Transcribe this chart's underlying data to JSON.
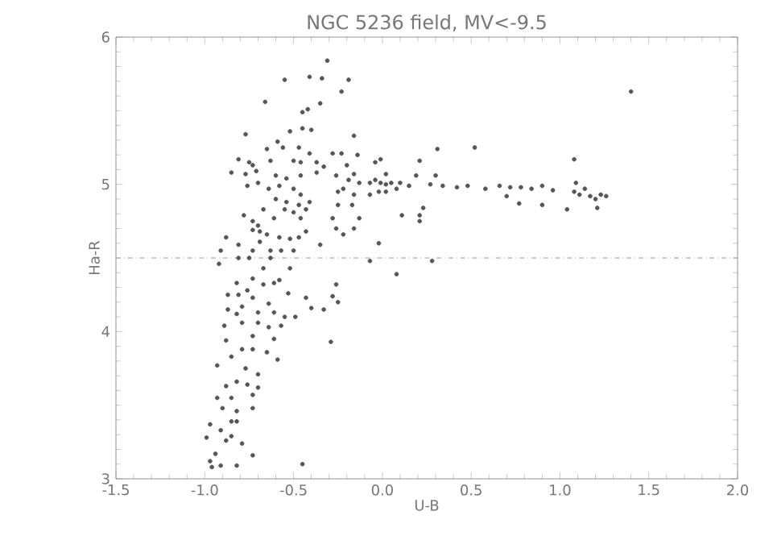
{
  "chart_data": {
    "type": "scatter",
    "title": "NGC 5236 field, MV<-9.5",
    "xlabel": "U-B",
    "ylabel": "Ha-R",
    "xlim": [
      -1.5,
      2.0
    ],
    "ylim": [
      3,
      6
    ],
    "xticks": [
      -1.5,
      {
        "value": -1.0,
        "label": "-1.0"
      },
      -0.5,
      {
        "value": 0.0,
        "label": "0.0"
      },
      0.5,
      {
        "value": 1.0,
        "label": "1.0"
      },
      1.5,
      {
        "value": 2.0,
        "label": "2.0"
      }
    ],
    "yticks": [
      3,
      4,
      5,
      6
    ],
    "marker": "circle",
    "ref_lines": [
      {
        "axis": "y",
        "value": 4.5,
        "color": "#999999",
        "line_style": "dashdot"
      }
    ],
    "series": [
      {
        "color": "#555555",
        "x": [
          -0.31,
          -0.55,
          -0.41,
          -0.34,
          -0.19,
          -0.23,
          -0.66,
          -0.35,
          -0.42,
          -0.45,
          -0.77,
          -0.52,
          -0.45,
          -0.4,
          -0.16,
          -0.65,
          -0.56,
          -0.47,
          -0.59,
          -0.41,
          -0.28,
          -0.23,
          -0.14,
          -0.81,
          -0.75,
          -0.73,
          -0.63,
          -0.5,
          -0.46,
          -0.37,
          -0.33,
          -0.2,
          -0.04,
          -0.01,
          0.21,
          0.31,
          0.52,
          1.08,
          1.4,
          -0.85,
          -0.77,
          -0.71,
          -0.6,
          -0.54,
          -0.46,
          -0.37,
          -0.26,
          -0.16,
          0.02,
          0.19,
          0.3,
          -0.19,
          -0.13,
          -0.07,
          -0.04,
          -0.01,
          0.02,
          0.05,
          0.1,
          0.15,
          0.27,
          0.34,
          0.42,
          0.48,
          0.58,
          0.66,
          0.72,
          0.78,
          0.84,
          0.9,
          0.96,
          1.08,
          1.11,
          1.14,
          1.17,
          1.2,
          1.23,
          1.26,
          1.09,
          1.21,
          1.04,
          0.9,
          0.77,
          0.7,
          0.23,
          0.21,
          0.21,
          0.11,
          0.08,
          -0.02,
          -0.07,
          0.28,
          -0.07,
          -0.02,
          0.02,
          0.08,
          -0.22,
          -0.16,
          -0.25,
          -0.76,
          -0.7,
          -0.64,
          -0.58,
          -0.5,
          -0.46,
          -0.6,
          -0.54,
          -0.47,
          -0.41,
          -0.67,
          -0.55,
          -0.61,
          -0.5,
          -0.43,
          -0.46,
          -0.78,
          -0.73,
          -0.7,
          -0.69,
          -0.73,
          -0.65,
          -0.58,
          -0.52,
          -0.47,
          -0.43,
          -0.35,
          -0.28,
          -0.25,
          -0.17,
          -0.13,
          -0.22,
          -0.16,
          -0.26,
          -0.88,
          -0.91,
          -0.81,
          -0.73,
          -0.63,
          -0.57,
          -0.5,
          -0.69,
          -0.92,
          -0.81,
          -0.75,
          -0.63,
          -0.52,
          -0.67,
          -0.73,
          -0.82,
          -0.76,
          -0.81,
          -0.87,
          -0.73,
          -0.67,
          -0.61,
          -0.58,
          -0.53,
          -0.64,
          -0.87,
          -0.79,
          -0.7,
          -0.61,
          -0.55,
          -0.49,
          -0.43,
          -0.4,
          -0.33,
          -0.28,
          -0.26,
          -0.25,
          -0.7,
          -0.64,
          -0.57,
          -0.79,
          -0.82,
          -0.89,
          -0.73,
          -0.61,
          -0.29,
          -0.88,
          -0.85,
          -0.79,
          -0.73,
          -0.65,
          -0.59,
          -0.93,
          -0.77,
          -0.7,
          -0.82,
          -0.76,
          -0.88,
          -0.85,
          -0.73,
          -0.7,
          -0.93,
          -0.9,
          -0.82,
          -0.73,
          -0.97,
          -0.91,
          -0.85,
          -0.85,
          -0.82,
          -0.99,
          -0.94,
          -0.88,
          -0.79,
          -0.73,
          -0.97,
          -0.96,
          -0.91,
          -0.82,
          -0.45
        ],
        "values": [
          5.84,
          5.71,
          5.73,
          5.72,
          5.71,
          5.63,
          5.56,
          5.55,
          5.51,
          5.49,
          5.34,
          5.36,
          5.38,
          5.37,
          5.33,
          5.24,
          5.25,
          5.25,
          5.29,
          5.21,
          5.21,
          5.21,
          5.2,
          5.17,
          5.15,
          5.13,
          5.16,
          5.16,
          5.15,
          5.15,
          5.12,
          5.13,
          5.15,
          5.17,
          5.16,
          5.24,
          5.25,
          5.17,
          5.63,
          5.08,
          5.07,
          5.09,
          5.06,
          5.04,
          5.06,
          5.08,
          5.06,
          5.07,
          5.07,
          5.06,
          5.06,
          5.03,
          5.01,
          5.01,
          5.03,
          5.01,
          5.0,
          5.01,
          5.01,
          4.99,
          5.0,
          4.99,
          4.98,
          4.99,
          4.97,
          4.99,
          4.98,
          4.98,
          4.97,
          4.99,
          4.96,
          4.95,
          4.93,
          4.97,
          4.92,
          4.9,
          4.93,
          4.92,
          5.01,
          4.84,
          4.83,
          4.86,
          4.87,
          4.92,
          4.84,
          4.75,
          4.79,
          4.79,
          4.39,
          4.6,
          4.48,
          4.48,
          4.93,
          4.95,
          4.95,
          4.97,
          4.97,
          4.93,
          4.95,
          4.99,
          5.01,
          4.97,
          4.99,
          4.97,
          4.93,
          4.9,
          4.88,
          4.86,
          4.88,
          4.83,
          4.83,
          4.77,
          4.81,
          4.83,
          4.77,
          4.79,
          4.75,
          4.72,
          4.68,
          4.69,
          4.66,
          4.64,
          4.63,
          4.64,
          4.68,
          4.59,
          4.77,
          4.86,
          4.86,
          4.77,
          4.66,
          4.7,
          4.7,
          4.64,
          4.55,
          4.59,
          4.55,
          4.55,
          4.55,
          4.55,
          4.61,
          4.46,
          4.5,
          4.5,
          4.5,
          4.43,
          4.43,
          4.36,
          4.33,
          4.28,
          4.25,
          4.25,
          4.23,
          4.32,
          4.33,
          4.35,
          4.26,
          4.19,
          4.15,
          4.17,
          4.13,
          4.13,
          4.1,
          4.1,
          4.23,
          4.16,
          4.15,
          4.24,
          4.32,
          4.2,
          4.06,
          4.03,
          4.04,
          4.06,
          4.12,
          4.04,
          3.97,
          3.95,
          3.93,
          3.94,
          3.83,
          3.88,
          3.88,
          3.86,
          3.81,
          3.77,
          3.75,
          3.71,
          3.66,
          3.64,
          3.63,
          3.55,
          3.57,
          3.62,
          3.55,
          3.48,
          3.46,
          3.48,
          3.37,
          3.33,
          3.39,
          3.29,
          3.39,
          3.28,
          3.17,
          3.26,
          3.24,
          3.16,
          3.12,
          3.08,
          3.09,
          3.09,
          3.1
        ]
      }
    ]
  }
}
